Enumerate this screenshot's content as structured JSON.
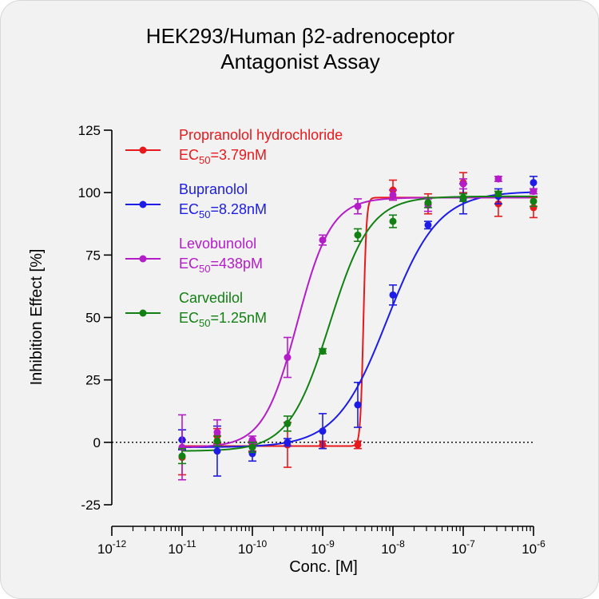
{
  "chart_data": {
    "type": "scatter",
    "title_lines": [
      "HEK293/Human β2-adrenoceptor",
      "Antagonist Assay"
    ],
    "xlabel": "Conc. [M]",
    "ylabel": "Inhibition Effect [%]",
    "xscale": "log",
    "xlim": [
      1e-12,
      1e-06
    ],
    "ylim": [
      -25,
      125
    ],
    "x_tick_labels": [
      {
        "base": "10",
        "exp": "-12"
      },
      {
        "base": "10",
        "exp": "-11"
      },
      {
        "base": "10",
        "exp": "-10"
      },
      {
        "base": "10",
        "exp": "-9"
      },
      {
        "base": "10",
        "exp": "-8"
      },
      {
        "base": "10",
        "exp": "-7"
      },
      {
        "base": "10",
        "exp": "-6"
      }
    ],
    "y_ticks": [
      -25,
      0,
      25,
      50,
      75,
      100,
      125
    ],
    "y_tick_labels": [
      "-25",
      "0",
      "25",
      "50",
      "75",
      "100",
      "125"
    ],
    "baseline_dotted_at": 0,
    "legend_position": "top-left",
    "series": [
      {
        "name": "Propranolol hydrochloride",
        "ec50_prefix": "EC",
        "ec50_sub": "50",
        "ec50_value": "=3.79nM",
        "color": "#e8191c",
        "points": [
          {
            "x": 1e-11,
            "y": -6,
            "err": 7
          },
          {
            "x": 3.16e-11,
            "y": 2.5,
            "err": 3
          },
          {
            "x": 1e-10,
            "y": -1.5,
            "err": 2
          },
          {
            "x": 3.16e-10,
            "y": -1,
            "err": 9
          },
          {
            "x": 1e-09,
            "y": -1,
            "err": 1.5
          },
          {
            "x": 3.16e-09,
            "y": -1,
            "err": 1.5
          },
          {
            "x": 1e-08,
            "y": 101,
            "err": 4
          },
          {
            "x": 3.16e-08,
            "y": 95.5,
            "err": 4
          },
          {
            "x": 1e-07,
            "y": 104,
            "err": 4
          },
          {
            "x": 3.16e-07,
            "y": 95.5,
            "err": 5
          },
          {
            "x": 1e-06,
            "y": 94,
            "err": 4
          }
        ],
        "fit": {
          "bottom": -1.5,
          "top": 98,
          "logec50": -8.42,
          "hill": 20
        }
      },
      {
        "name": "Bupranolol",
        "ec50_prefix": "EC",
        "ec50_sub": "50",
        "ec50_value": "=8.28nM",
        "color": "#1c1ce6",
        "points": [
          {
            "x": 1e-11,
            "y": 1,
            "err": 4
          },
          {
            "x": 3.16e-11,
            "y": -3.5,
            "err": 10
          },
          {
            "x": 1e-10,
            "y": -4.5,
            "err": 3
          },
          {
            "x": 3.16e-10,
            "y": 0,
            "err": 1.5
          },
          {
            "x": 1e-09,
            "y": 4.5,
            "err": 7
          },
          {
            "x": 3.16e-09,
            "y": 15,
            "err": 9
          },
          {
            "x": 1e-08,
            "y": 59,
            "err": 4
          },
          {
            "x": 3.16e-08,
            "y": 87,
            "err": 1.5
          },
          {
            "x": 1e-07,
            "y": 97.5,
            "err": 6
          },
          {
            "x": 3.16e-07,
            "y": 98.5,
            "err": 3
          },
          {
            "x": 1e-06,
            "y": 104,
            "err": 2.5
          }
        ],
        "fit": {
          "bottom": -2,
          "top": 100.5,
          "logec50": -8.08,
          "hill": 1.2
        }
      },
      {
        "name": "Levobunolol",
        "ec50_prefix": "EC",
        "ec50_sub": "50",
        "ec50_value": "=438pM",
        "color": "#b41cc8",
        "points": [
          {
            "x": 1e-11,
            "y": -2,
            "err": 13
          },
          {
            "x": 3.16e-11,
            "y": 4,
            "err": 5
          },
          {
            "x": 1e-10,
            "y": 1,
            "err": 1.5
          },
          {
            "x": 3.16e-10,
            "y": 34,
            "err": 8
          },
          {
            "x": 1e-09,
            "y": 81,
            "err": 2
          },
          {
            "x": 3.16e-09,
            "y": 94.5,
            "err": 3
          },
          {
            "x": 1e-08,
            "y": 99,
            "err": 2
          },
          {
            "x": 3.16e-08,
            "y": 95,
            "err": 2.5
          },
          {
            "x": 1e-07,
            "y": 103.5,
            "err": 2
          },
          {
            "x": 3.16e-07,
            "y": 105.5,
            "err": 1
          },
          {
            "x": 1e-06,
            "y": 100.5,
            "err": 1
          }
        ],
        "fit": {
          "bottom": -2,
          "top": 98,
          "logec50": -9.36,
          "hill": 1.8
        }
      },
      {
        "name": "Carvedilol",
        "ec50_prefix": "EC",
        "ec50_sub": "50",
        "ec50_value": "=1.25nM",
        "color": "#138013",
        "points": [
          {
            "x": 1e-11,
            "y": -5.5,
            "err": 3
          },
          {
            "x": 3.16e-11,
            "y": 0.5,
            "err": 2
          },
          {
            "x": 1e-10,
            "y": -2,
            "err": 2
          },
          {
            "x": 3.16e-10,
            "y": 7.5,
            "err": 3
          },
          {
            "x": 1e-09,
            "y": 36.5,
            "err": 1
          },
          {
            "x": 3.16e-09,
            "y": 83,
            "err": 2.5
          },
          {
            "x": 1e-08,
            "y": 88.5,
            "err": 2.5
          },
          {
            "x": 3.16e-08,
            "y": 96,
            "err": 2
          },
          {
            "x": 1e-07,
            "y": 98,
            "err": 1.5
          },
          {
            "x": 3.16e-07,
            "y": 99.5,
            "err": 1
          },
          {
            "x": 1e-06,
            "y": 96.5,
            "err": 2
          }
        ],
        "fit": {
          "bottom": -3.5,
          "top": 98.5,
          "logec50": -8.9,
          "hill": 1.5
        }
      }
    ]
  }
}
